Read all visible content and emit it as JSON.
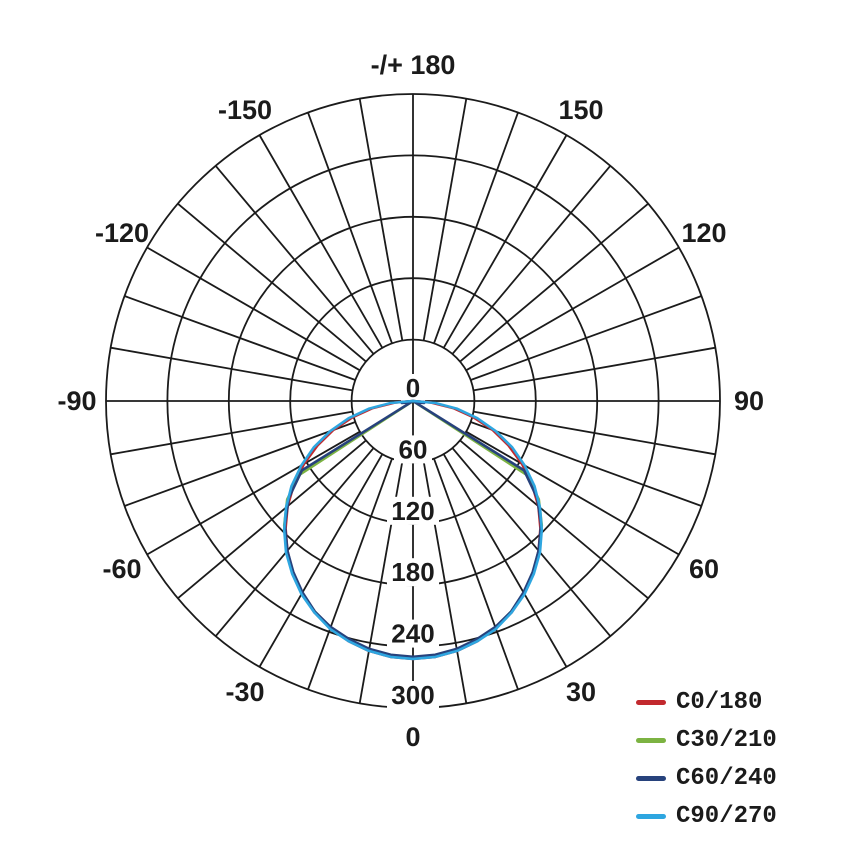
{
  "colors": {
    "background": "#ffffff",
    "grid": "#1b1b1b",
    "text": "#1b1b1b"
  },
  "chart_data": {
    "type": "line",
    "subtype": "polar-luminous-intensity",
    "title": "",
    "grid": {
      "spoke_step_deg": 10,
      "spoke_inner_value": 60,
      "gridlines": "on",
      "axes_cross_center": true
    },
    "radial_axis": {
      "ticks": [
        "0",
        "60",
        "120",
        "180",
        "240",
        "300"
      ],
      "tick_values": [
        0,
        60,
        120,
        180,
        240,
        300
      ],
      "max": 300,
      "label_side": "down-vertical"
    },
    "angle_axis": {
      "zero_position": "bottom",
      "labels": [
        {
          "angle": 180,
          "text": "-/+ 180"
        },
        {
          "angle": -150,
          "text": "-150"
        },
        {
          "angle": 150,
          "text": "150"
        },
        {
          "angle": -120,
          "text": "-120"
        },
        {
          "angle": 120,
          "text": "120"
        },
        {
          "angle": -90,
          "text": "-90"
        },
        {
          "angle": 90,
          "text": "90"
        },
        {
          "angle": -60,
          "text": "-60"
        },
        {
          "angle": 60,
          "text": "60"
        },
        {
          "angle": -30,
          "text": "-30"
        },
        {
          "angle": 30,
          "text": "30"
        },
        {
          "angle": 0,
          "text": "0"
        }
      ]
    },
    "legend": {
      "position": "bottom-right"
    },
    "series": [
      {
        "name": "C0/180",
        "color": "#c2292e",
        "points": [
          [
            -90,
            0
          ],
          [
            -85,
            18
          ],
          [
            -80,
            40
          ],
          [
            -75,
            61
          ],
          [
            -70,
            83
          ],
          [
            -65,
            103
          ],
          [
            -60,
            123
          ],
          [
            -55,
            142
          ],
          [
            -50,
            160
          ],
          [
            -45,
            176
          ],
          [
            -40,
            191
          ],
          [
            -35,
            205
          ],
          [
            -30,
            217
          ],
          [
            -25,
            228
          ],
          [
            -20,
            236
          ],
          [
            -15,
            243
          ],
          [
            -10,
            248
          ],
          [
            -5,
            251
          ],
          [
            0,
            252
          ],
          [
            5,
            251
          ],
          [
            10,
            248
          ],
          [
            15,
            243
          ],
          [
            20,
            236
          ],
          [
            25,
            228
          ],
          [
            30,
            217
          ],
          [
            35,
            205
          ],
          [
            40,
            191
          ],
          [
            45,
            176
          ],
          [
            50,
            160
          ],
          [
            55,
            142
          ],
          [
            60,
            123
          ],
          [
            65,
            103
          ],
          [
            70,
            83
          ],
          [
            75,
            61
          ],
          [
            80,
            40
          ],
          [
            85,
            18
          ],
          [
            90,
            0
          ]
        ]
      },
      {
        "name": "C30/210",
        "color": "#7cb342",
        "points": [
          [
            -90,
            0
          ],
          [
            -57,
            132
          ],
          [
            -52,
            156
          ],
          [
            -46,
            175
          ],
          [
            -40,
            192
          ],
          [
            -35,
            205
          ],
          [
            -30,
            217
          ],
          [
            -25,
            227
          ],
          [
            -20,
            236
          ],
          [
            -15,
            242
          ],
          [
            -10,
            247
          ],
          [
            -5,
            250
          ],
          [
            0,
            251
          ],
          [
            5,
            250
          ],
          [
            10,
            247
          ],
          [
            15,
            242
          ],
          [
            20,
            236
          ],
          [
            25,
            227
          ],
          [
            30,
            217
          ],
          [
            35,
            205
          ],
          [
            40,
            192
          ],
          [
            46,
            175
          ],
          [
            52,
            156
          ],
          [
            57,
            132
          ],
          [
            90,
            0
          ]
        ]
      },
      {
        "name": "C60/240",
        "color": "#27427c",
        "points": [
          [
            -90,
            0
          ],
          [
            -85,
            10
          ],
          [
            -80,
            11
          ],
          [
            -74,
            5
          ],
          [
            -70,
            0
          ],
          [
            -58,
            128
          ],
          [
            -52,
            154
          ],
          [
            -46,
            174
          ],
          [
            -40,
            191
          ],
          [
            -35,
            204
          ],
          [
            -30,
            216
          ],
          [
            -25,
            227
          ],
          [
            -20,
            235
          ],
          [
            -15,
            241
          ],
          [
            -10,
            246
          ],
          [
            -5,
            249
          ],
          [
            0,
            250
          ],
          [
            5,
            249
          ],
          [
            10,
            246
          ],
          [
            15,
            241
          ],
          [
            20,
            235
          ],
          [
            25,
            227
          ],
          [
            30,
            216
          ],
          [
            35,
            204
          ],
          [
            40,
            191
          ],
          [
            46,
            174
          ],
          [
            52,
            154
          ],
          [
            58,
            128
          ],
          [
            70,
            0
          ],
          [
            74,
            5
          ],
          [
            80,
            11
          ],
          [
            85,
            10
          ],
          [
            90,
            0
          ]
        ]
      },
      {
        "name": "C90/270",
        "color": "#2ea6e0",
        "points": [
          [
            -90,
            0
          ],
          [
            -85,
            22
          ],
          [
            -80,
            44
          ],
          [
            -75,
            65
          ],
          [
            -70,
            86
          ],
          [
            -65,
            107
          ],
          [
            -60,
            126
          ],
          [
            -55,
            145
          ],
          [
            -50,
            162
          ],
          [
            -45,
            178
          ],
          [
            -40,
            193
          ],
          [
            -35,
            206
          ],
          [
            -30,
            218
          ],
          [
            -25,
            228
          ],
          [
            -20,
            237
          ],
          [
            -15,
            243
          ],
          [
            -10,
            248
          ],
          [
            -5,
            251
          ],
          [
            0,
            252
          ],
          [
            5,
            251
          ],
          [
            10,
            248
          ],
          [
            15,
            243
          ],
          [
            20,
            237
          ],
          [
            25,
            228
          ],
          [
            30,
            218
          ],
          [
            35,
            206
          ],
          [
            40,
            193
          ],
          [
            45,
            178
          ],
          [
            50,
            162
          ],
          [
            55,
            145
          ],
          [
            60,
            126
          ],
          [
            65,
            107
          ],
          [
            70,
            86
          ],
          [
            75,
            65
          ],
          [
            80,
            44
          ],
          [
            85,
            22
          ],
          [
            90,
            0
          ]
        ]
      }
    ]
  }
}
